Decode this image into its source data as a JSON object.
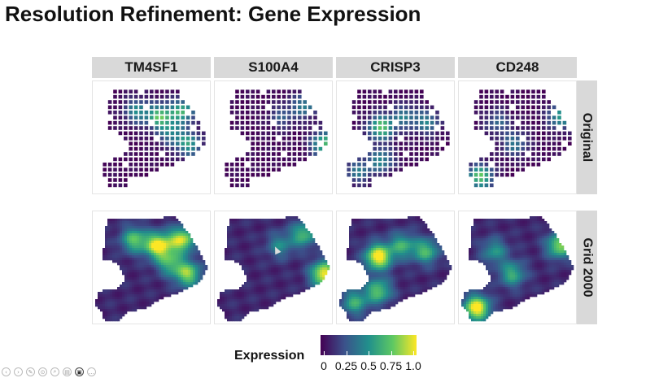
{
  "slide": {
    "title": "Resolution Refinement: Gene Expression"
  },
  "chart_data": {
    "type": "heatmap",
    "title": "",
    "columns": [
      "TM4SF1",
      "S100A4",
      "CRISP3",
      "CD248"
    ],
    "rows": [
      "Original",
      "Grid 2000"
    ],
    "legend": {
      "title": "Expression",
      "range": [
        0,
        1
      ],
      "ticks": [
        "0",
        "0.25",
        "0.5",
        "0.75",
        "1.0"
      ],
      "colormap": "viridis",
      "placement": "bottom"
    },
    "hotspots": {
      "TM4SF1": [
        [
          0.55,
          0.3,
          0.9
        ],
        [
          0.75,
          0.25,
          0.8
        ],
        [
          0.8,
          0.55,
          0.7
        ],
        [
          0.35,
          0.25,
          0.6
        ],
        [
          0.65,
          0.45,
          0.5
        ]
      ],
      "S100A4": [
        [
          0.92,
          0.55,
          0.9
        ],
        [
          0.75,
          0.2,
          0.55
        ],
        [
          0.55,
          0.3,
          0.35
        ]
      ],
      "CRISP3": [
        [
          0.35,
          0.4,
          0.95
        ],
        [
          0.35,
          0.7,
          0.6
        ],
        [
          0.75,
          0.35,
          0.55
        ],
        [
          0.15,
          0.8,
          0.5
        ],
        [
          0.55,
          0.3,
          0.5
        ]
      ],
      "CD248": [
        [
          0.15,
          0.85,
          0.95
        ],
        [
          0.85,
          0.3,
          0.7
        ],
        [
          0.45,
          0.55,
          0.5
        ],
        [
          0.3,
          0.35,
          0.4
        ]
      ]
    }
  },
  "toolbar": {
    "icons": [
      "prev-icon",
      "play-icon",
      "pen-icon",
      "zoom-icon",
      "search-icon",
      "pages-icon",
      "camera-icon",
      "more-icon"
    ]
  }
}
